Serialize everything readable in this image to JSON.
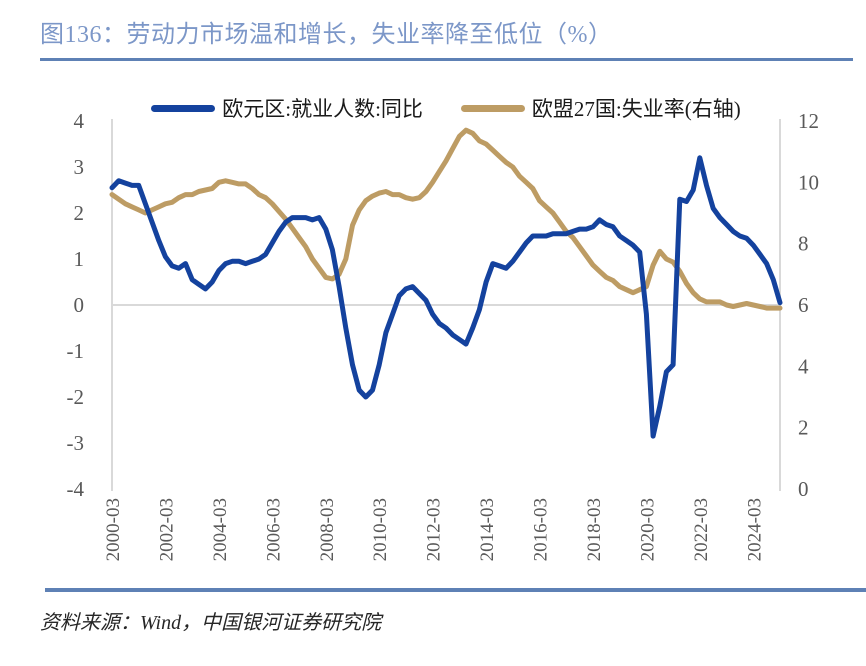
{
  "figure": {
    "title": "图136：劳动力市场温和增长，失业率降至低位（%）",
    "source": "资料来源：Wind，中国银河证券研究院"
  },
  "colors": {
    "title_text": "#7C97C8",
    "divider_rule": "#5E81B5",
    "axis_line": "#D9D9D9",
    "tick_text": "#595959",
    "employment_line": "#14429E",
    "unemployment_line": "#BD9C64"
  },
  "chart_data": {
    "type": "line",
    "frequency": "quarterly",
    "x_start": "2000-03",
    "x_end": "2025-03",
    "legend_position": "top-center",
    "grid": "zero-line-only",
    "x_tick_labels": [
      "2000-03",
      "2002-03",
      "2004-03",
      "2006-03",
      "2008-03",
      "2010-03",
      "2012-03",
      "2014-03",
      "2016-03",
      "2018-03",
      "2020-03",
      "2022-03",
      "2024-03"
    ],
    "left_axis": {
      "min": -4,
      "max": 4,
      "ticks": [
        4,
        3,
        2,
        1,
        0,
        -1,
        -2,
        -3,
        -4
      ]
    },
    "right_axis": {
      "min": 0,
      "max": 12,
      "ticks": [
        12,
        10,
        8,
        6,
        4,
        2,
        0
      ]
    },
    "series": [
      {
        "name": "欧元区:就业人数:同比",
        "axis": "left",
        "color": "#14429E",
        "values": [
          2.55,
          2.7,
          2.65,
          2.6,
          2.6,
          2.2,
          1.8,
          1.4,
          1.05,
          0.85,
          0.8,
          0.9,
          0.55,
          0.45,
          0.35,
          0.5,
          0.75,
          0.9,
          0.95,
          0.95,
          0.9,
          0.95,
          1.0,
          1.1,
          1.35,
          1.6,
          1.8,
          1.9,
          1.9,
          1.9,
          1.85,
          1.9,
          1.65,
          1.2,
          0.4,
          -0.5,
          -1.3,
          -1.85,
          -2.0,
          -1.85,
          -1.3,
          -0.6,
          -0.2,
          0.2,
          0.35,
          0.4,
          0.25,
          0.1,
          -0.2,
          -0.4,
          -0.5,
          -0.65,
          -0.75,
          -0.85,
          -0.5,
          -0.1,
          0.5,
          0.9,
          0.85,
          0.8,
          0.95,
          1.15,
          1.35,
          1.5,
          1.5,
          1.5,
          1.55,
          1.55,
          1.55,
          1.6,
          1.65,
          1.65,
          1.7,
          1.85,
          1.75,
          1.7,
          1.5,
          1.4,
          1.3,
          1.15,
          -0.2,
          -2.85,
          -2.2,
          -1.45,
          -1.3,
          2.3,
          2.25,
          2.5,
          3.2,
          2.6,
          2.1,
          1.9,
          1.75,
          1.6,
          1.5,
          1.45,
          1.3,
          1.1,
          0.9,
          0.55,
          0.05
        ]
      },
      {
        "name": "欧盟27国:失业率(右轴)",
        "axis": "right",
        "color": "#BD9C64",
        "values": [
          9.6,
          9.45,
          9.3,
          9.2,
          9.1,
          9.0,
          9.1,
          9.2,
          9.3,
          9.35,
          9.5,
          9.6,
          9.6,
          9.7,
          9.75,
          9.8,
          10.0,
          10.05,
          10.0,
          9.95,
          9.95,
          9.8,
          9.6,
          9.5,
          9.3,
          9.05,
          8.8,
          8.5,
          8.2,
          7.9,
          7.5,
          7.2,
          6.9,
          6.85,
          7.0,
          7.5,
          8.6,
          9.1,
          9.4,
          9.55,
          9.65,
          9.7,
          9.6,
          9.6,
          9.5,
          9.45,
          9.5,
          9.7,
          10.0,
          10.35,
          10.7,
          11.1,
          11.5,
          11.7,
          11.6,
          11.35,
          11.25,
          11.05,
          10.85,
          10.65,
          10.5,
          10.2,
          10.0,
          9.8,
          9.4,
          9.2,
          9.0,
          8.7,
          8.4,
          8.2,
          7.9,
          7.6,
          7.3,
          7.1,
          6.9,
          6.8,
          6.6,
          6.5,
          6.4,
          6.5,
          6.6,
          7.3,
          7.75,
          7.5,
          7.4,
          7.1,
          6.7,
          6.4,
          6.2,
          6.1,
          6.1,
          6.1,
          6.0,
          5.95,
          6.0,
          6.05,
          6.0,
          5.95,
          5.9,
          5.9,
          5.9
        ]
      }
    ]
  }
}
